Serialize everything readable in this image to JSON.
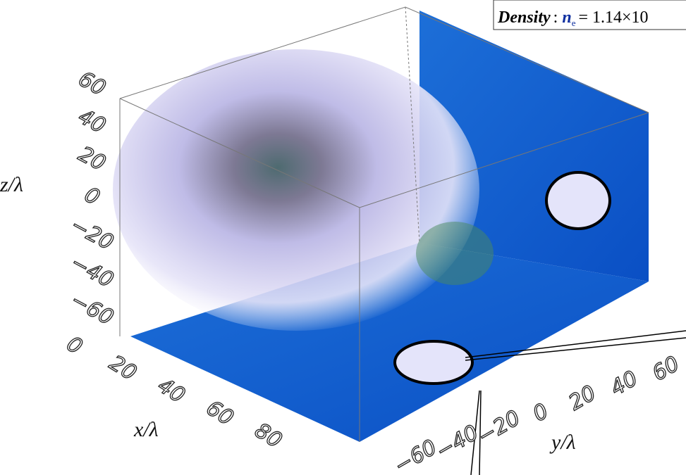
{
  "legend": {
    "quantity": "Density",
    "separator": ":",
    "symbol": "n",
    "subscript": "e",
    "expression": "= 1.14×10"
  },
  "axes": {
    "z": {
      "label": "z/λ",
      "ticks": [
        "60",
        "40",
        "20",
        "0",
        "−20",
        "−40",
        "−60"
      ]
    },
    "x": {
      "label": "x/λ",
      "ticks": [
        "0",
        "20",
        "40",
        "60",
        "80"
      ]
    },
    "y": {
      "label": "y/λ",
      "ticks": [
        "60",
        "40",
        "20",
        "0",
        "−20",
        "−40",
        "−60"
      ]
    }
  }
}
